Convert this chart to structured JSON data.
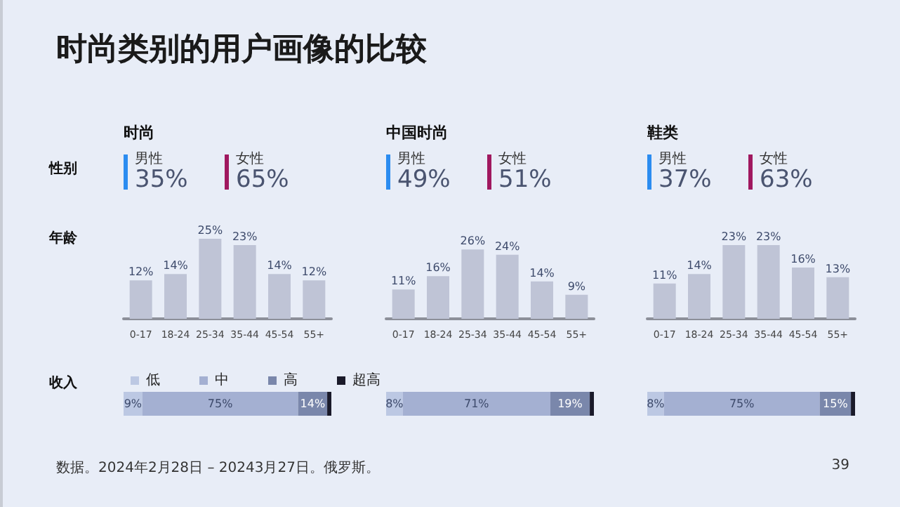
{
  "chart_data": [
    {
      "type": "other",
      "title": "时尚类别的用户画像的比较",
      "annotations": [
        "数据。2024年2月28日 – 20243月27日。俄罗斯。",
        "39"
      ]
    },
    {
      "type": "other",
      "title": "时尚",
      "ylabel": "性别",
      "categories": [
        "男性",
        "女性"
      ],
      "value_labels": [
        "35%",
        "65%"
      ],
      "colors": [
        "#2b8cf0",
        "#a0185f"
      ]
    },
    {
      "type": "other",
      "title": "中国时尚",
      "categories": [
        "男性",
        "女性"
      ],
      "value_labels": [
        "49%",
        "51%"
      ],
      "colors": [
        "#2b8cf0",
        "#a0185f"
      ]
    },
    {
      "type": "other",
      "title": "鞋类",
      "categories": [
        "男性",
        "女性"
      ],
      "value_labels": [
        "37%",
        "63%"
      ],
      "colors": [
        "#2b8cf0",
        "#a0185f"
      ]
    },
    {
      "type": "bar",
      "ylabel": "年龄",
      "categories": [
        "0-17",
        "18-24",
        "25-34",
        "35-44",
        "45-54",
        "55+"
      ],
      "values": [
        12,
        14,
        25,
        23,
        14,
        12
      ],
      "color": "#bfc4d6",
      "value_labels": [
        "12%",
        "14%",
        "25%",
        "23%",
        "14%",
        "12%"
      ],
      "tick_labels": "x"
    },
    {
      "type": "bar",
      "categories": [
        "0-17",
        "18-24",
        "25-34",
        "35-44",
        "45-54",
        "55+"
      ],
      "values": [
        11,
        16,
        26,
        24,
        14,
        9
      ],
      "color": "#bfc4d6",
      "value_labels": [
        "11%",
        "16%",
        "26%",
        "24%",
        "14%",
        "9%"
      ],
      "tick_labels": "x"
    },
    {
      "type": "bar",
      "categories": [
        "0-17",
        "18-24",
        "25-34",
        "35-44",
        "45-54",
        "55+"
      ],
      "values": [
        11,
        14,
        23,
        23,
        16,
        13
      ],
      "color": "#bfc4d6",
      "value_labels": [
        "11%",
        "14%",
        "23%",
        "23%",
        "16%",
        "13%"
      ],
      "tick_labels": "x"
    },
    {
      "type": "bar",
      "ylabel": "收入",
      "orientation": "horizontal",
      "stacked": true,
      "legend": "top",
      "tick_labels": false,
      "categories": [
        null
      ],
      "series": [
        {
          "name": "低",
          "color": "#bcc8e3",
          "values": [
            9
          ],
          "value_labels": [
            "9%"
          ]
        },
        {
          "name": "中",
          "color": "#a4b0d2",
          "values": [
            75
          ],
          "value_labels": [
            "75%"
          ]
        },
        {
          "name": "高",
          "color": "#7a87ab",
          "values": [
            14
          ],
          "value_labels": [
            "14%"
          ]
        },
        {
          "name": "超高",
          "color": "#1a1a2a",
          "values": [
            2
          ],
          "value_labels": [
            null
          ]
        }
      ]
    },
    {
      "type": "bar",
      "orientation": "horizontal",
      "stacked": true,
      "tick_labels": false,
      "categories": [
        null
      ],
      "series": [
        {
          "color": "#bcc8e3",
          "values": [
            8
          ],
          "value_labels": [
            "8%"
          ]
        },
        {
          "color": "#a4b0d2",
          "values": [
            71
          ],
          "value_labels": [
            "71%"
          ]
        },
        {
          "color": "#7a87ab",
          "values": [
            19
          ],
          "value_labels": [
            "19%"
          ]
        },
        {
          "color": "#1a1a2a",
          "values": [
            2
          ],
          "value_labels": [
            null
          ]
        }
      ]
    },
    {
      "type": "bar",
      "orientation": "horizontal",
      "stacked": true,
      "tick_labels": false,
      "categories": [
        null
      ],
      "series": [
        {
          "color": "#bcc8e3",
          "values": [
            8
          ],
          "value_labels": [
            "8%"
          ]
        },
        {
          "color": "#a4b0d2",
          "values": [
            75
          ],
          "value_labels": [
            "75%"
          ]
        },
        {
          "color": "#7a87ab",
          "values": [
            15
          ],
          "value_labels": [
            "15%"
          ]
        },
        {
          "color": "#1a1a2a",
          "values": [
            2
          ],
          "value_labels": [
            null
          ]
        }
      ]
    }
  ]
}
